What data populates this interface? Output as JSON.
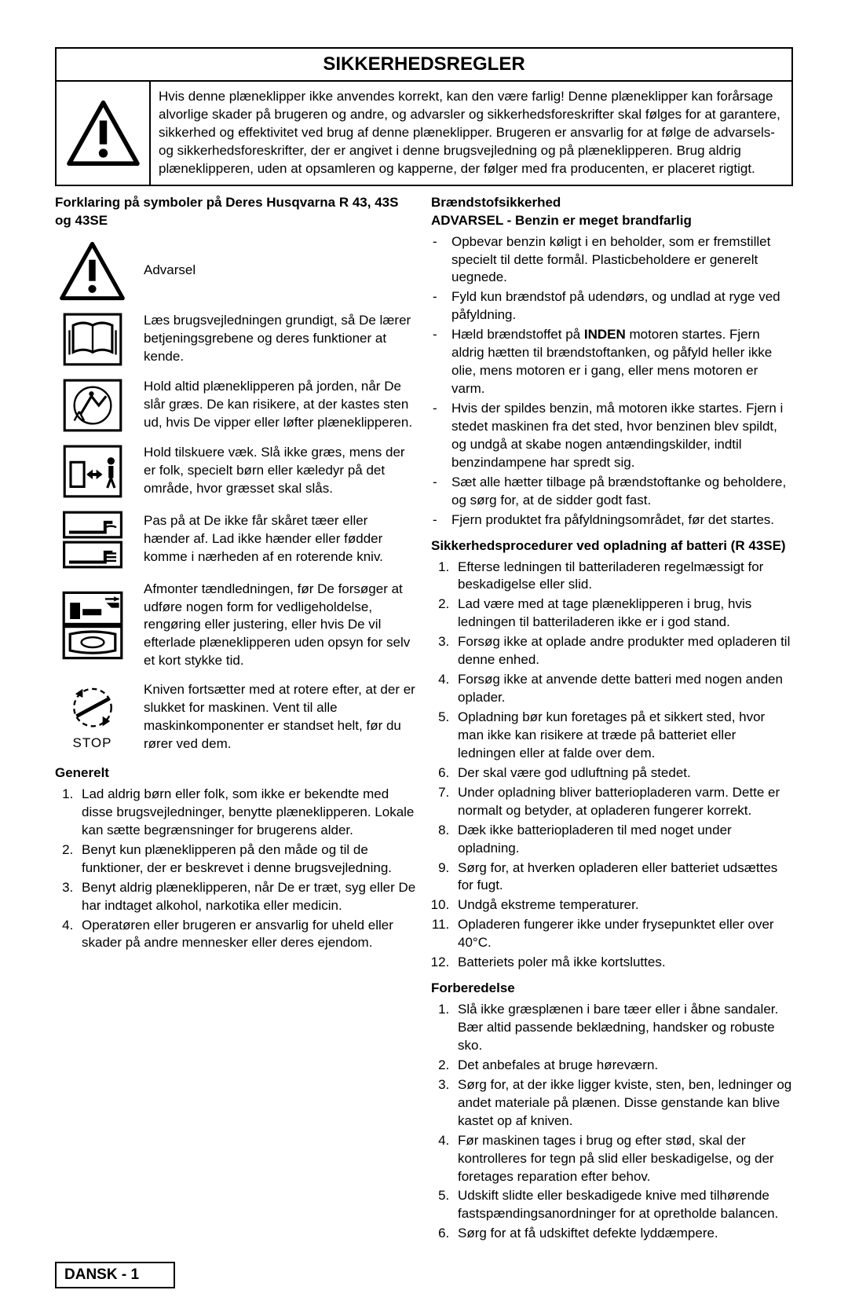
{
  "title": "SIKKERHEDSREGLER",
  "intro_warning": "Hvis denne plæneklipper ikke anvendes korrekt, kan den være farlig!  Denne plæneklipper kan forårsage alvorlige skader på brugeren og andre, og advarsler og sikkerhedsforeskrifter skal følges for at garantere, sikkerhed og effektivitet ved brug af denne plæneklipper. Brugeren er ansvarlig for at følge de advarsels- og sikkerhedsforeskrifter, der er angivet i denne brugsvejledning og på plæneklipperen.  Brug aldrig plæneklipperen, uden at opsamleren og kapperne, der følger med fra producenten, er placeret rigtigt.",
  "left": {
    "symbols_heading": "Forklaring på symboler på Deres Husqvarna R 43, 43S og 43SE",
    "symbols": [
      {
        "text": "Advarsel"
      },
      {
        "text": "Læs brugsvejledningen grundigt, så De lærer betjeningsgrebene og deres funktioner at kende."
      },
      {
        "text": "Hold altid plæneklipperen på jorden, når De slår græs.  De kan risikere, at der kastes sten ud, hvis De vipper eller løfter plæneklipperen."
      },
      {
        "text": "Hold tilskuere væk. Slå ikke græs, mens der er folk, specielt børn eller kæledyr på det område, hvor græsset skal slås."
      },
      {
        "text": "Pas på at De ikke får skåret tæer eller hænder af.  Lad ikke hænder eller fødder komme i nærheden af en roterende kniv."
      },
      {
        "text": "Afmonter tændledningen, før De forsøger at udføre nogen form for vedligeholdelse, rengøring eller justering, eller hvis De vil efterlade plæneklipperen uden opsyn for selv et kort stykke tid."
      },
      {
        "text": "Kniven fortsætter med at rotere efter, at der er slukket for maskinen.  Vent til alle maskinkomponenter er standset helt, før du rører ved dem."
      }
    ],
    "stop_label": "STOP",
    "general_heading": "Generelt",
    "general_items": [
      "Lad aldrig børn eller folk, som ikke er bekendte med disse brugsvejledninger, benytte plæneklipperen.  Lokale kan sætte begrænsninger for brugerens alder.",
      "Benyt kun plæneklipperen på den måde og til de funktioner, der er beskrevet i denne brugsvejledning.",
      "Benyt aldrig plæneklipperen, når De er træt, syg eller De har indtaget alkohol, narkotika eller medicin.",
      "Operatøren eller brugeren er ansvarlig for uheld eller skader på andre mennesker eller deres ejendom."
    ]
  },
  "right": {
    "fuel_heading": "Brændstofsikkerhed",
    "fuel_warning": "ADVARSEL - Benzin er meget brandfarlig",
    "fuel_items": [
      "Opbevar benzin køligt i en beholder, som er fremstillet specielt til dette formål. Plasticbeholdere er generelt uegnede.",
      "Fyld kun brændstof på udendørs, og undlad at ryge ved påfyldning.",
      "Hæld brændstoffet på <b>INDEN</b> motoren startes.  Fjern aldrig hætten til brændstoftanken, og påfyld heller ikke olie, mens motoren er i gang, eller mens motoren er varm.",
      "Hvis der spildes benzin, må motoren ikke  startes. Fjern i stedet maskinen fra det sted, hvor benzinen blev spildt, og undgå at skabe nogen antændingskilder, indtil benzindampene har spredt sig.",
      "Sæt alle hætter tilbage på brændstoftanke og beholdere, og sørg for, at de sidder godt fast.",
      "Fjern produktet fra påfyldningsområdet, før det startes."
    ],
    "battery_heading": "Sikkerhedsprocedurer ved opladning af batteri (R 43SE)",
    "battery_items": [
      "Efterse ledningen til batteriladeren regelmæssigt for beskadigelse eller slid.",
      "Lad være med at tage plæneklipperen i brug, hvis ledningen til batteriladeren ikke er i god stand.",
      "Forsøg ikke at oplade andre produkter med opladeren til denne enhed.",
      "Forsøg ikke at anvende dette batteri med nogen anden oplader.",
      "Opladning bør kun foretages på et sikkert sted, hvor man ikke kan risikere at træde på batteriet eller ledningen eller at falde over dem.",
      "Der skal være god udluftning på stedet.",
      "Under opladning bliver batteriopladeren varm.  Dette er normalt og betyder, at opladeren fungerer korrekt.",
      "Dæk ikke batteriopladeren til med noget under opladning.",
      "Sørg for, at hverken opladeren eller batteriet udsættes for fugt.",
      "Undgå ekstreme temperaturer.",
      "Opladeren fungerer ikke under frysepunktet eller over 40°C.",
      "Batteriets poler må ikke kortsluttes."
    ],
    "prep_heading": "Forberedelse",
    "prep_items": [
      "Slå ikke græsplænen i bare tæer eller i åbne sandaler.  Bær altid passende beklædning, handsker og robuste sko.",
      "Det anbefales at bruge høreværn.",
      "Sørg for, at der ikke ligger kviste, sten, ben, ledninger og andet materiale på plænen.  Disse genstande kan blive kastet op af kniven.",
      "Før maskinen tages i brug og efter stød, skal der kontrolleres for tegn på slid eller beskadigelse, og der foretages reparation efter behov.",
      "Udskift slidte eller beskadigede knive med tilhørende fastspændingsanordninger for at opretholde balancen.",
      "Sørg for at få udskiftet defekte lyddæmpere."
    ]
  },
  "page_label": "DANSK - 1"
}
